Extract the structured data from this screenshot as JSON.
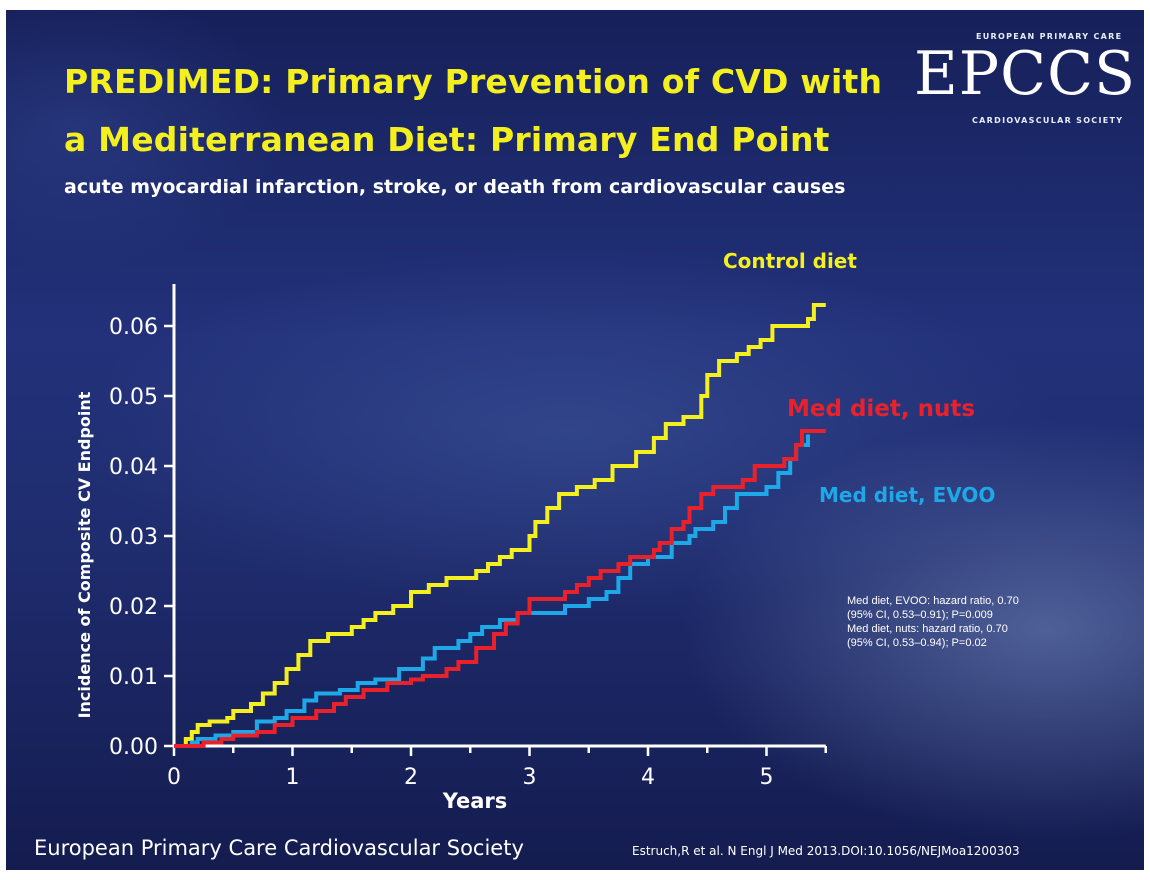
{
  "slide": {
    "title_line1": "PREDIMED: Primary Prevention of CVD with",
    "title_line2": "a Mediterranean Diet: Primary End Point",
    "subtitle": "acute myocardial infarction, stroke, or death from cardiovascular causes",
    "footer": "European Primary Care Cardiovascular Society",
    "citation": "Estruch,R et al. N Engl J Med 2013.DOI:10.1056/NEJMoa1200303"
  },
  "logo": {
    "top_text": "EUROPEAN PRIMARY CARE",
    "wordmark": "EPCCS",
    "bottom_text": "CARDIOVASCULAR SOCIETY"
  },
  "stats": {
    "lines": [
      "Med diet, EVOO: hazard ratio, 0.70",
      "(95% CI, 0.53–0.91); P=0.009",
      "Med diet, nuts: hazard ratio, 0.70",
      "(95% CI, 0.53–0.94); P=0.02"
    ]
  },
  "colors": {
    "title": "#f4ef1e",
    "control": "#f4ef1e",
    "nuts": "#e8212b",
    "evoo": "#1ea8e8",
    "axis": "#ffffff"
  },
  "chart_data": {
    "type": "line",
    "title": "",
    "xlabel": "Years",
    "ylabel": "Incidence of Composite CV Endpoint",
    "xlim": [
      0,
      5.5
    ],
    "ylim": [
      0,
      0.065
    ],
    "x_ticks": [
      0,
      1,
      2,
      3,
      4,
      5
    ],
    "y_ticks": [
      "0.00",
      "0.01",
      "0.02",
      "0.03",
      "0.04",
      "0.05",
      "0.06"
    ],
    "step": true,
    "series": [
      {
        "name": "Control diet",
        "color": "#f4ef1e",
        "points": [
          [
            0,
            0
          ],
          [
            0.1,
            0.001
          ],
          [
            0.15,
            0.002
          ],
          [
            0.2,
            0.003
          ],
          [
            0.3,
            0.0035
          ],
          [
            0.45,
            0.004
          ],
          [
            0.5,
            0.005
          ],
          [
            0.65,
            0.006
          ],
          [
            0.75,
            0.0075
          ],
          [
            0.85,
            0.009
          ],
          [
            0.95,
            0.011
          ],
          [
            1.05,
            0.013
          ],
          [
            1.15,
            0.015
          ],
          [
            1.3,
            0.016
          ],
          [
            1.5,
            0.017
          ],
          [
            1.6,
            0.018
          ],
          [
            1.7,
            0.019
          ],
          [
            1.85,
            0.02
          ],
          [
            2.0,
            0.022
          ],
          [
            2.15,
            0.023
          ],
          [
            2.3,
            0.024
          ],
          [
            2.55,
            0.025
          ],
          [
            2.65,
            0.026
          ],
          [
            2.75,
            0.027
          ],
          [
            2.85,
            0.028
          ],
          [
            3.0,
            0.03
          ],
          [
            3.05,
            0.032
          ],
          [
            3.15,
            0.034
          ],
          [
            3.25,
            0.036
          ],
          [
            3.4,
            0.037
          ],
          [
            3.55,
            0.038
          ],
          [
            3.7,
            0.04
          ],
          [
            3.9,
            0.042
          ],
          [
            4.05,
            0.044
          ],
          [
            4.15,
            0.046
          ],
          [
            4.3,
            0.047
          ],
          [
            4.45,
            0.05
          ],
          [
            4.5,
            0.053
          ],
          [
            4.6,
            0.055
          ],
          [
            4.75,
            0.056
          ],
          [
            4.85,
            0.057
          ],
          [
            4.95,
            0.058
          ],
          [
            5.05,
            0.06
          ],
          [
            5.35,
            0.061
          ],
          [
            5.4,
            0.063
          ],
          [
            5.5,
            0.063
          ]
        ]
      },
      {
        "name": "Med diet, nuts",
        "color": "#e8212b",
        "points": [
          [
            0,
            0
          ],
          [
            0.25,
            0.0005
          ],
          [
            0.4,
            0.001
          ],
          [
            0.5,
            0.0015
          ],
          [
            0.7,
            0.002
          ],
          [
            0.85,
            0.003
          ],
          [
            1.0,
            0.004
          ],
          [
            1.2,
            0.005
          ],
          [
            1.35,
            0.006
          ],
          [
            1.45,
            0.007
          ],
          [
            1.6,
            0.008
          ],
          [
            1.8,
            0.009
          ],
          [
            2.0,
            0.0095
          ],
          [
            2.1,
            0.01
          ],
          [
            2.3,
            0.011
          ],
          [
            2.4,
            0.012
          ],
          [
            2.55,
            0.014
          ],
          [
            2.7,
            0.016
          ],
          [
            2.8,
            0.0175
          ],
          [
            2.9,
            0.019
          ],
          [
            3.0,
            0.021
          ],
          [
            3.3,
            0.022
          ],
          [
            3.4,
            0.023
          ],
          [
            3.5,
            0.024
          ],
          [
            3.6,
            0.025
          ],
          [
            3.75,
            0.026
          ],
          [
            3.85,
            0.027
          ],
          [
            4.05,
            0.028
          ],
          [
            4.1,
            0.029
          ],
          [
            4.2,
            0.031
          ],
          [
            4.3,
            0.032
          ],
          [
            4.35,
            0.034
          ],
          [
            4.45,
            0.036
          ],
          [
            4.55,
            0.037
          ],
          [
            4.8,
            0.038
          ],
          [
            4.9,
            0.04
          ],
          [
            5.15,
            0.041
          ],
          [
            5.25,
            0.043
          ],
          [
            5.3,
            0.045
          ],
          [
            5.5,
            0.045
          ]
        ]
      },
      {
        "name": "Med diet, EVOO",
        "color": "#1ea8e8",
        "points": [
          [
            0,
            0
          ],
          [
            0.15,
            0.0005
          ],
          [
            0.2,
            0.001
          ],
          [
            0.35,
            0.0015
          ],
          [
            0.5,
            0.002
          ],
          [
            0.7,
            0.0035
          ],
          [
            0.85,
            0.004
          ],
          [
            0.95,
            0.005
          ],
          [
            1.1,
            0.0065
          ],
          [
            1.2,
            0.0075
          ],
          [
            1.4,
            0.008
          ],
          [
            1.55,
            0.009
          ],
          [
            1.7,
            0.0095
          ],
          [
            1.9,
            0.011
          ],
          [
            2.1,
            0.0125
          ],
          [
            2.2,
            0.014
          ],
          [
            2.4,
            0.015
          ],
          [
            2.5,
            0.016
          ],
          [
            2.6,
            0.017
          ],
          [
            2.75,
            0.018
          ],
          [
            2.9,
            0.019
          ],
          [
            3.3,
            0.02
          ],
          [
            3.5,
            0.021
          ],
          [
            3.65,
            0.022
          ],
          [
            3.75,
            0.024
          ],
          [
            3.85,
            0.026
          ],
          [
            4.0,
            0.027
          ],
          [
            4.2,
            0.029
          ],
          [
            4.35,
            0.03
          ],
          [
            4.4,
            0.031
          ],
          [
            4.55,
            0.032
          ],
          [
            4.65,
            0.034
          ],
          [
            4.75,
            0.036
          ],
          [
            5.0,
            0.037
          ],
          [
            5.1,
            0.039
          ],
          [
            5.2,
            0.041
          ],
          [
            5.25,
            0.043
          ],
          [
            5.35,
            0.0445
          ]
        ]
      }
    ]
  }
}
